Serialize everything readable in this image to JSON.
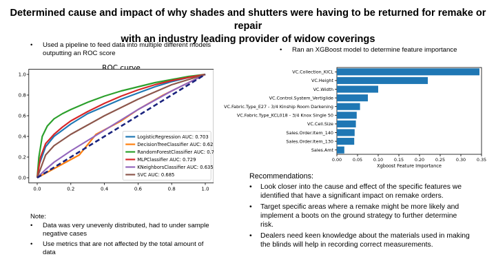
{
  "title_line1": "Determined cause and impact of why shades and shutters were having to be returned for remake or repair",
  "title_line2": "with an industry leading provider of widow coverings",
  "bullet_pipeline_1": "Used a pipeline to feed data into multiple different models",
  "bullet_pipeline_2": "outputting an ROC score",
  "bullet_xgboost": "Ran an XGBoost model to determine feature importance",
  "bullet_char": "•",
  "note": {
    "heading": "Note:",
    "items": [
      [
        "Data was very unevenly distributed, had to under sample",
        "negative cases"
      ],
      [
        "Use metrics that are not affected by the total amount of",
        "data"
      ]
    ]
  },
  "recommendations": {
    "heading": "Recommendations:",
    "items": [
      [
        "Look closer into the cause and effect of the specific features we",
        "identified that have a significant impact on remake orders."
      ],
      [
        "Target specific areas where a remake might be more likely and",
        "implement a boots on the ground strategy to further determine",
        "risk."
      ],
      [
        "Dealers need keen knowledge about the materials used in making",
        "the blinds will help in recording correct measurements."
      ]
    ]
  },
  "chart_data": [
    {
      "type": "line",
      "title": "ROC curve",
      "xlabel": "",
      "ylabel": "",
      "xlim": [
        0,
        1
      ],
      "ylim": [
        0,
        1
      ],
      "xticks": [
        "0.0",
        "0.2",
        "0.4",
        "0.6",
        "0.8",
        "1.0"
      ],
      "yticks": [
        "0.0",
        "0.2",
        "0.4",
        "0.6",
        "0.8",
        "1.0"
      ],
      "grid": false,
      "legend_position": "bottom-right",
      "diagonal": {
        "x": [
          0,
          1
        ],
        "y": [
          0,
          1
        ],
        "color": "#1a237e",
        "style": "dashed"
      },
      "series": [
        {
          "name": "LogisticRegression AUC: 0.703",
          "color": "#1f77b4",
          "x": [
            0,
            0.01,
            0.05,
            0.1,
            0.2,
            0.3,
            0.4,
            0.5,
            0.6,
            0.7,
            0.8,
            0.9,
            1.0
          ],
          "y": [
            0,
            0.12,
            0.3,
            0.4,
            0.52,
            0.62,
            0.69,
            0.76,
            0.82,
            0.88,
            0.93,
            0.97,
            1.0
          ]
        },
        {
          "name": "DecisionTreeClassifier AUC: 0.625",
          "color": "#ff7f0e",
          "x": [
            0,
            0.25,
            0.35,
            0.5,
            0.6,
            0.75,
            0.9,
            1.0
          ],
          "y": [
            0,
            0.22,
            0.42,
            0.55,
            0.66,
            0.8,
            0.92,
            1.0
          ]
        },
        {
          "name": "RandomForestClassifier AUC: 0.761",
          "color": "#2ca02c",
          "x": [
            0,
            0.01,
            0.03,
            0.06,
            0.1,
            0.15,
            0.2,
            0.3,
            0.4,
            0.5,
            0.6,
            0.7,
            0.8,
            0.9,
            1.0
          ],
          "y": [
            0,
            0.2,
            0.4,
            0.5,
            0.57,
            0.62,
            0.66,
            0.73,
            0.79,
            0.84,
            0.88,
            0.92,
            0.95,
            0.98,
            1.0
          ]
        },
        {
          "name": "MLPClassifier AUC: 0.729",
          "color": "#d62728",
          "x": [
            0,
            0.02,
            0.05,
            0.1,
            0.15,
            0.2,
            0.3,
            0.4,
            0.5,
            0.6,
            0.7,
            0.8,
            0.9,
            1.0
          ],
          "y": [
            0,
            0.2,
            0.33,
            0.42,
            0.49,
            0.55,
            0.64,
            0.72,
            0.79,
            0.85,
            0.9,
            0.94,
            0.97,
            1.0
          ]
        },
        {
          "name": "KNeighborsClassifier AUC: 0.635",
          "color": "#9467bd",
          "x": [
            0,
            0.05,
            0.1,
            0.2,
            0.3,
            0.4,
            0.5,
            0.6,
            0.7,
            0.8,
            0.9,
            1.0
          ],
          "y": [
            0,
            0.08,
            0.15,
            0.26,
            0.36,
            0.46,
            0.56,
            0.66,
            0.75,
            0.84,
            0.92,
            1.0
          ]
        },
        {
          "name": "SVC AUC: 0.685",
          "color": "#8c564b",
          "x": [
            0,
            0.05,
            0.1,
            0.2,
            0.3,
            0.4,
            0.5,
            0.6,
            0.7,
            0.8,
            0.9,
            1.0
          ],
          "y": [
            0,
            0.22,
            0.31,
            0.42,
            0.51,
            0.6,
            0.68,
            0.76,
            0.83,
            0.9,
            0.95,
            1.0
          ]
        }
      ]
    },
    {
      "type": "bar",
      "orientation": "horizontal",
      "title": "",
      "xlabel": "Xgboost Feature Importance",
      "ylabel": "",
      "xlim": [
        0,
        0.35
      ],
      "xticks": [
        "0.00",
        "0.05",
        "0.10",
        "0.15",
        "0.20",
        "0.25",
        "0.30",
        "0.35"
      ],
      "grid": false,
      "color": "#1f77b4",
      "categories": [
        "VC.Collection_KICL",
        "VC.Height",
        "VC.Width",
        "VC.Control.System_Vertiglide",
        "VC.Fabric.Type_E27 - 3/4 Kinship Room Darkening",
        "VC.Fabric.Type_KCL018 - 3/4 Knox Single 50",
        "VC.Cell.Size",
        "Sales.Order.Item_140",
        "Sales.Order.Item_130",
        "Sales.Amt"
      ],
      "values": [
        0.345,
        0.22,
        0.1,
        0.075,
        0.056,
        0.048,
        0.046,
        0.043,
        0.042,
        0.018
      ]
    }
  ]
}
